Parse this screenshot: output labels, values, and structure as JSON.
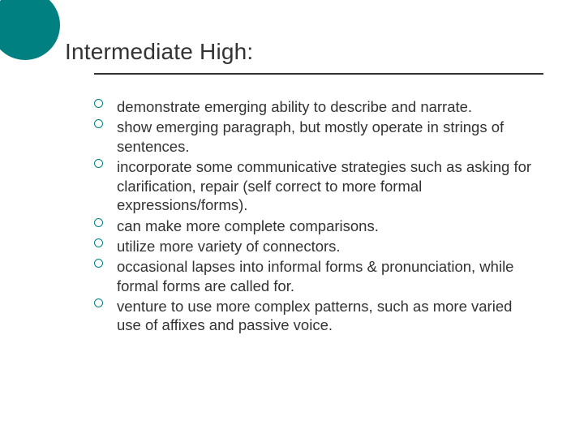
{
  "slide": {
    "title": "Intermediate High:",
    "accent_color": "#008080",
    "text_color": "#333333",
    "background_color": "#ffffff",
    "title_fontsize": 28,
    "body_fontsize": 18.5,
    "bullets": [
      "demonstrate emerging ability to describe and narrate.",
      "show emerging paragraph, but mostly operate in strings of sentences.",
      "incorporate some communicative strategies such as asking for clarification, repair (self correct to more formal expressions/forms).",
      "can make more complete comparisons.",
      "utilize more variety of connectors.",
      "occasional lapses into informal forms & pronunciation, while formal forms are called for.",
      "venture to use more complex patterns, such as more varied use of affixes and passive voice."
    ]
  }
}
